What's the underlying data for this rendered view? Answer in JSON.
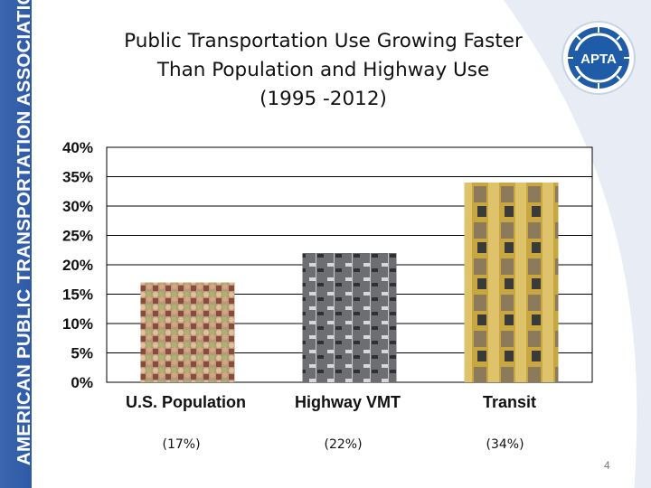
{
  "slide": {
    "sidebar_text": "AMERICAN PUBLIC TRANSPORTATION ASSOCIATION",
    "logo_text": "APTA",
    "page_number": "4",
    "colors": {
      "brand_blue": "#2d5aa8",
      "logo_blue": "#1f5ca8",
      "grid": "#000000"
    }
  },
  "chart_data": {
    "type": "bar",
    "title": [
      "Public Transportation Use Growing Faster",
      "Than Population and Highway Use",
      "(1995 -2012)"
    ],
    "categories": [
      "U.S. Population",
      "Highway VMT",
      "Transit"
    ],
    "values": [
      17,
      22,
      34
    ],
    "value_labels": [
      "(17%)",
      "(22%)",
      "(34%)"
    ],
    "ylim": [
      0,
      40
    ],
    "yticks": [
      "0%",
      "5%",
      "10%",
      "15%",
      "20%",
      "25%",
      "30%",
      "35%",
      "40%"
    ],
    "ytick_values": [
      0,
      5,
      10,
      15,
      20,
      25,
      30,
      35,
      40
    ],
    "grid": true,
    "bar_fill": [
      "crowd-photo",
      "highway-traffic-photo",
      "transit-commuter-photo"
    ]
  }
}
